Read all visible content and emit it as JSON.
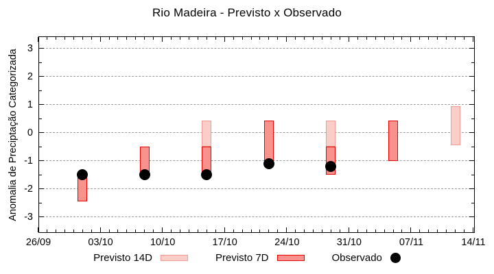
{
  "chart_data": {
    "type": "bar",
    "title": "Rio Madeira - Previsto x Observado",
    "xlabel": "",
    "ylabel": "Anomalia de Preciptação Categorizada",
    "ylim": [
      -3.5,
      3.45
    ],
    "y_major_ticks": [
      -3,
      -2,
      -1,
      0,
      1,
      2,
      3
    ],
    "y_minor_ticks": [
      -2.5,
      -1.5,
      -0.5,
      0.5,
      1.5,
      2.5
    ],
    "grid": "horizontal-dashed",
    "legend_position": "bottom",
    "x_axis": {
      "total_days": 49,
      "major_tick_every_days": 7,
      "tick_labels": [
        "26/09",
        "03/10",
        "10/10",
        "17/10",
        "24/10",
        "31/10",
        "07/11",
        "14/11"
      ]
    },
    "series": [
      {
        "name": "Previsto 14D",
        "type": "bar",
        "fill": "#f9cdc8",
        "border": "#f09a90",
        "border_px": 1,
        "bars": [
          {
            "date": "15/10",
            "day": 19,
            "from": -0.5,
            "to": 0.45
          },
          {
            "date": "29/10",
            "day": 33,
            "from": -0.5,
            "to": 0.45
          },
          {
            "date": "12/11",
            "day": 47,
            "from": -0.45,
            "to": 0.95
          }
        ]
      },
      {
        "name": "Previsto 7D",
        "type": "bar",
        "fill": "#f9918d",
        "border": "#e60000",
        "border_px": 1.5,
        "bars": [
          {
            "date": "01/10",
            "day": 5,
            "from": -2.45,
            "to": -1.5
          },
          {
            "date": "08/10",
            "day": 12,
            "from": -1.5,
            "to": -0.5
          },
          {
            "date": "15/10",
            "day": 19,
            "from": -1.45,
            "to": -0.5
          },
          {
            "date": "22/10",
            "day": 26,
            "from": -1.0,
            "to": 0.45
          },
          {
            "date": "29/10",
            "day": 33,
            "from": -1.5,
            "to": -0.5
          },
          {
            "date": "05/11",
            "day": 40,
            "from": -1.0,
            "to": 0.45
          }
        ]
      },
      {
        "name": "Observado",
        "type": "point",
        "color": "#000000",
        "points": [
          {
            "date": "01/10",
            "day": 5,
            "value": -1.5
          },
          {
            "date": "08/10",
            "day": 12,
            "value": -1.5
          },
          {
            "date": "15/10",
            "day": 19,
            "value": -1.5
          },
          {
            "date": "22/10",
            "day": 26,
            "value": -1.1
          },
          {
            "date": "29/10",
            "day": 33,
            "value": -1.2
          }
        ]
      }
    ]
  },
  "legend": {
    "items": [
      {
        "label": "Previsto 14D",
        "marker": "bar-14d"
      },
      {
        "label": "Previsto 7D",
        "marker": "bar-7d"
      },
      {
        "label": "Observado",
        "marker": "dot"
      }
    ]
  },
  "colors": {
    "grid": "#999999",
    "axis": "#000000",
    "background": "#ffffff"
  }
}
